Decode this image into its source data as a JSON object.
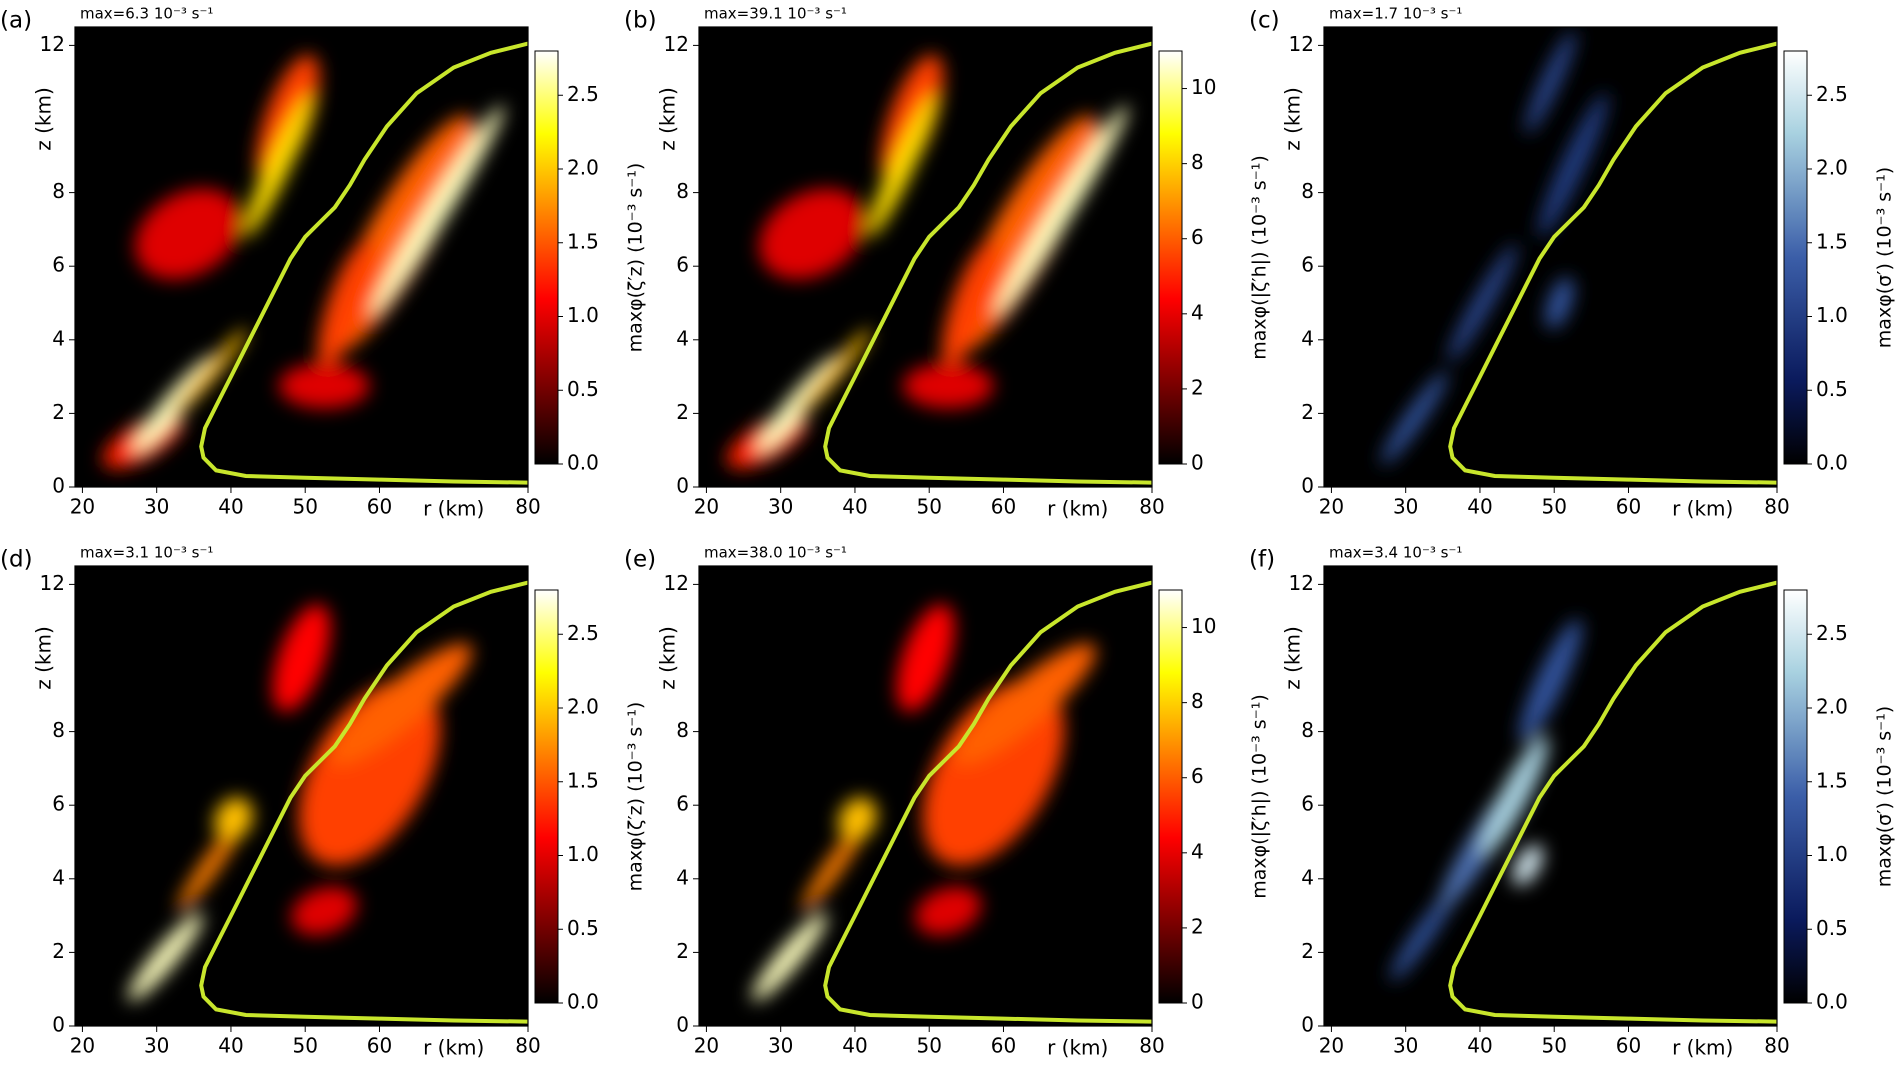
{
  "chart_data": [
    {
      "type": "heatmap",
      "panel_label": "(a)",
      "annotation": "max=6.3 10⁻³ s⁻¹",
      "colormap": "hot",
      "xlabel": "r (km)",
      "ylabel": "z (km)",
      "colorbar_label": "maxφ(ζ′z) (10⁻³ s⁻¹)",
      "xlim": [
        19,
        80
      ],
      "ylim": [
        0,
        12.5
      ],
      "xticks": [
        20,
        30,
        40,
        50,
        60,
        80
      ],
      "yticks": [
        0,
        2,
        4,
        6,
        8,
        12
      ],
      "clim": [
        0,
        2.8
      ],
      "cticks": [
        {
          "value": 0,
          "label": "0.0"
        },
        0.5,
        {
          "value": 1,
          "label": "1.0"
        },
        1.5,
        {
          "value": 2,
          "label": "2.0"
        },
        2.5
      ],
      "series": [
        {
          "color": "#c8e62c",
          "x": [
            80,
            70,
            60,
            50,
            42,
            38,
            36.3,
            36,
            36.5,
            38,
            40,
            42,
            44,
            46,
            48,
            50,
            52,
            54,
            56,
            58,
            61,
            65,
            70,
            75,
            80
          ],
          "values": [
            0.12,
            0.15,
            0.2,
            0.25,
            0.3,
            0.45,
            0.8,
            1.1,
            1.6,
            2.2,
            3,
            3.8,
            4.6,
            5.4,
            6.2,
            6.8,
            7.2,
            7.6,
            8.2,
            8.9,
            9.8,
            10.7,
            11.4,
            11.8,
            12.05
          ]
        }
      ]
    },
    {
      "type": "heatmap",
      "panel_label": "(b)",
      "annotation": "max=39.1 10⁻³ s⁻¹",
      "colormap": "hot",
      "xlabel": "r (km)",
      "ylabel": "z (km)",
      "colorbar_label": "maxφ(|ζ′h|) (10⁻³ s⁻¹)",
      "xlim": [
        19,
        80
      ],
      "ylim": [
        0,
        12.5
      ],
      "xticks": [
        20,
        30,
        40,
        50,
        60,
        80
      ],
      "yticks": [
        0,
        2,
        4,
        6,
        8,
        12
      ],
      "clim": [
        0,
        11
      ],
      "cticks": [
        0,
        2,
        4,
        6,
        8,
        10
      ],
      "series": [
        {
          "color": "#c8e62c",
          "x": [
            80,
            70,
            60,
            50,
            42,
            38,
            36.3,
            36,
            36.5,
            38,
            40,
            42,
            44,
            46,
            48,
            50,
            52,
            54,
            56,
            58,
            61,
            65,
            70,
            75,
            80
          ],
          "values": [
            0.12,
            0.15,
            0.2,
            0.25,
            0.3,
            0.45,
            0.8,
            1.1,
            1.6,
            2.2,
            3,
            3.8,
            4.6,
            5.4,
            6.2,
            6.8,
            7.2,
            7.6,
            8.2,
            8.9,
            9.8,
            10.7,
            11.4,
            11.8,
            12.05
          ]
        }
      ]
    },
    {
      "type": "heatmap",
      "panel_label": "(c)",
      "annotation": "max=1.7 10⁻³ s⁻¹",
      "colormap": "blues",
      "xlabel": "r (km)",
      "ylabel": "z (km)",
      "colorbar_label": "maxφ(σ′) (10⁻³ s⁻¹)",
      "xlim": [
        19,
        80
      ],
      "ylim": [
        0,
        12.5
      ],
      "xticks": [
        20,
        30,
        40,
        50,
        60,
        80
      ],
      "yticks": [
        0,
        2,
        4,
        6,
        8,
        12
      ],
      "clim": [
        0,
        2.8
      ],
      "cticks": [
        {
          "value": 0,
          "label": "0.0"
        },
        0.5,
        {
          "value": 1,
          "label": "1.0"
        },
        1.5,
        {
          "value": 2,
          "label": "2.0"
        },
        2.5
      ],
      "series": [
        {
          "color": "#c8e62c",
          "x": [
            80,
            70,
            60,
            50,
            42,
            38,
            36.3,
            36,
            36.5,
            38,
            40,
            42,
            44,
            46,
            48,
            50,
            52,
            54,
            56,
            58,
            61,
            65,
            70,
            75,
            80
          ],
          "values": [
            0.12,
            0.15,
            0.2,
            0.25,
            0.3,
            0.45,
            0.8,
            1.1,
            1.6,
            2.2,
            3,
            3.8,
            4.6,
            5.4,
            6.2,
            6.8,
            7.2,
            7.6,
            8.2,
            8.9,
            9.8,
            10.7,
            11.4,
            11.8,
            12.05
          ]
        }
      ]
    },
    {
      "type": "heatmap",
      "panel_label": "(d)",
      "annotation": "max=3.1 10⁻³ s⁻¹",
      "colormap": "hot",
      "xlabel": "r (km)",
      "ylabel": "z (km)",
      "colorbar_label": "maxφ(ζ′z) (10⁻³ s⁻¹)",
      "xlim": [
        19,
        80
      ],
      "ylim": [
        0,
        12.5
      ],
      "xticks": [
        20,
        30,
        40,
        50,
        60,
        80
      ],
      "yticks": [
        0,
        2,
        4,
        6,
        8,
        12
      ],
      "clim": [
        0,
        2.8
      ],
      "cticks": [
        {
          "value": 0,
          "label": "0.0"
        },
        0.5,
        {
          "value": 1,
          "label": "1.0"
        },
        1.5,
        {
          "value": 2,
          "label": "2.0"
        },
        2.5
      ],
      "series": [
        {
          "color": "#c8e62c",
          "x": [
            80,
            70,
            60,
            50,
            42,
            38,
            36.3,
            36,
            36.5,
            38,
            40,
            42,
            44,
            46,
            48,
            50,
            52,
            54,
            56,
            58,
            61,
            65,
            70,
            75,
            80
          ],
          "values": [
            0.12,
            0.15,
            0.2,
            0.25,
            0.3,
            0.45,
            0.8,
            1.1,
            1.6,
            2.2,
            3,
            3.8,
            4.6,
            5.4,
            6.2,
            6.8,
            7.2,
            7.6,
            8.2,
            8.9,
            9.8,
            10.7,
            11.4,
            11.8,
            12.05
          ]
        }
      ]
    },
    {
      "type": "heatmap",
      "panel_label": "(e)",
      "annotation": "max=38.0 10⁻³ s⁻¹",
      "colormap": "hot",
      "xlabel": "r (km)",
      "ylabel": "z (km)",
      "colorbar_label": "maxφ(|ζ′h|) (10⁻³ s⁻¹)",
      "xlim": [
        19,
        80
      ],
      "ylim": [
        0,
        12.5
      ],
      "xticks": [
        20,
        30,
        40,
        50,
        60,
        80
      ],
      "yticks": [
        0,
        2,
        4,
        6,
        8,
        12
      ],
      "clim": [
        0,
        11
      ],
      "cticks": [
        0,
        2,
        4,
        6,
        8,
        10
      ],
      "series": [
        {
          "color": "#c8e62c",
          "x": [
            80,
            70,
            60,
            50,
            42,
            38,
            36.3,
            36,
            36.5,
            38,
            40,
            42,
            44,
            46,
            48,
            50,
            52,
            54,
            56,
            58,
            61,
            65,
            70,
            75,
            80
          ],
          "values": [
            0.12,
            0.15,
            0.2,
            0.25,
            0.3,
            0.45,
            0.8,
            1.1,
            1.6,
            2.2,
            3,
            3.8,
            4.6,
            5.4,
            6.2,
            6.8,
            7.2,
            7.6,
            8.2,
            8.9,
            9.8,
            10.7,
            11.4,
            11.8,
            12.05
          ]
        }
      ]
    },
    {
      "type": "heatmap",
      "panel_label": "(f)",
      "annotation": "max=3.4 10⁻³ s⁻¹",
      "colormap": "blues",
      "xlabel": "r (km)",
      "ylabel": "z (km)",
      "colorbar_label": "maxφ(σ′) (10⁻³ s⁻¹)",
      "xlim": [
        19,
        80
      ],
      "ylim": [
        0,
        12.5
      ],
      "xticks": [
        20,
        30,
        40,
        50,
        60,
        80
      ],
      "yticks": [
        0,
        2,
        4,
        6,
        8,
        12
      ],
      "clim": [
        0,
        2.8
      ],
      "cticks": [
        {
          "value": 0,
          "label": "0.0"
        },
        0.5,
        {
          "value": 1,
          "label": "1.0"
        },
        1.5,
        {
          "value": 2,
          "label": "2.0"
        },
        2.5
      ],
      "series": [
        {
          "color": "#c8e62c",
          "x": [
            80,
            70,
            60,
            50,
            42,
            38,
            36.3,
            36,
            36.5,
            38,
            40,
            42,
            44,
            46,
            48,
            50,
            52,
            54,
            56,
            58,
            61,
            65,
            70,
            75,
            80
          ],
          "values": [
            0.12,
            0.15,
            0.2,
            0.25,
            0.3,
            0.45,
            0.8,
            1.1,
            1.6,
            2.2,
            3,
            3.8,
            4.6,
            5.4,
            6.2,
            6.8,
            7.2,
            7.6,
            8.2,
            8.9,
            9.8,
            10.7,
            11.4,
            11.8,
            12.05
          ]
        }
      ]
    }
  ]
}
